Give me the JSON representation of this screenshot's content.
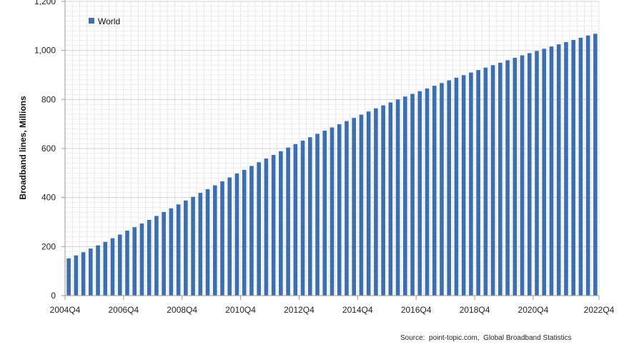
{
  "chart_data": {
    "type": "bar",
    "ylabel": "Broadband lines, Millions",
    "ylim": [
      0,
      1200
    ],
    "yticks": [
      0,
      200,
      400,
      600,
      800,
      1000,
      1200
    ],
    "ytick_labels": [
      "0",
      "200",
      "400",
      "600",
      "800",
      "1,000",
      "1,200"
    ],
    "x_tick_labels": [
      "2004Q4",
      "2006Q4",
      "2008Q4",
      "2010Q4",
      "2012Q4",
      "2014Q4",
      "2016Q4",
      "2018Q4",
      "2020Q4",
      "2022Q4"
    ],
    "categories": [
      "2004Q4",
      "2005Q1",
      "2005Q2",
      "2005Q3",
      "2005Q4",
      "2006Q1",
      "2006Q2",
      "2006Q3",
      "2006Q4",
      "2007Q1",
      "2007Q2",
      "2007Q3",
      "2007Q4",
      "2008Q1",
      "2008Q2",
      "2008Q3",
      "2008Q4",
      "2009Q1",
      "2009Q2",
      "2009Q3",
      "2009Q4",
      "2010Q1",
      "2010Q2",
      "2010Q3",
      "2010Q4",
      "2011Q1",
      "2011Q2",
      "2011Q3",
      "2011Q4",
      "2012Q1",
      "2012Q2",
      "2012Q3",
      "2012Q4",
      "2013Q1",
      "2013Q2",
      "2013Q3",
      "2013Q4",
      "2014Q1",
      "2014Q2",
      "2014Q3",
      "2014Q4",
      "2015Q1",
      "2015Q2",
      "2015Q3",
      "2015Q4",
      "2016Q1",
      "2016Q2",
      "2016Q3",
      "2016Q4",
      "2017Q1",
      "2017Q2",
      "2017Q3",
      "2017Q4",
      "2018Q1",
      "2018Q2",
      "2018Q3",
      "2018Q4",
      "2019Q1",
      "2019Q2",
      "2019Q3",
      "2019Q4",
      "2020Q1",
      "2020Q2",
      "2020Q3",
      "2020Q4",
      "2021Q1",
      "2021Q2",
      "2021Q3",
      "2021Q4",
      "2022Q1",
      "2022Q2",
      "2022Q3",
      "2022Q4"
    ],
    "series": [
      {
        "name": "World",
        "color": "#3a6fb5",
        "values": [
          152,
          164,
          177,
          192,
          205,
          219,
          234,
          249,
          265,
          279,
          294,
          309,
          325,
          341,
          356,
          372,
          388,
          403,
          419,
          434,
          450,
          466,
          482,
          498,
          513,
          529,
          544,
          559,
          574,
          589,
          604,
          618,
          632,
          646,
          660,
          673,
          686,
          699,
          712,
          725,
          738,
          751,
          764,
          776,
          788,
          800,
          812,
          823,
          834,
          845,
          856,
          867,
          878,
          889,
          899,
          910,
          920,
          930,
          940,
          950,
          960,
          970,
          980,
          989,
          998,
          1007,
          1016,
          1025,
          1034,
          1043,
          1052,
          1061,
          1068
        ]
      }
    ],
    "legend_position": "top-left",
    "grid": true
  },
  "footer": {
    "source": "Source:  point-topic.com,  Global Broadband Statistics"
  }
}
